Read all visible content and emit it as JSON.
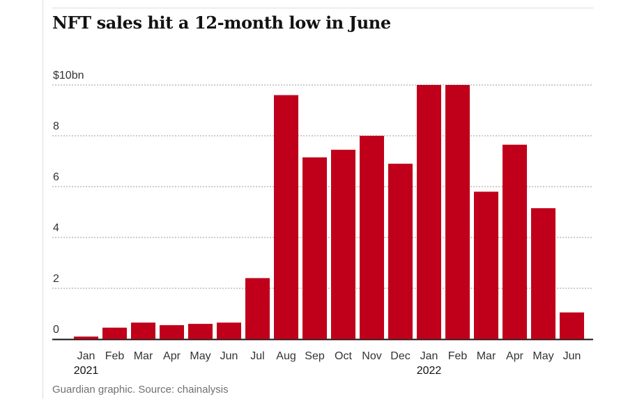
{
  "title": "NFT sales hit a 12-month low in June",
  "source": "Guardian graphic. Source: chainalysis",
  "colors": {
    "bar": "#c0001a",
    "grid": "#999999",
    "text": "#333333",
    "axis": "#121212"
  },
  "chart_data": {
    "type": "bar",
    "categories": [
      "Jan",
      "Feb",
      "Mar",
      "Apr",
      "May",
      "Jun",
      "Jul",
      "Aug",
      "Sep",
      "Oct",
      "Nov",
      "Dec",
      "Jan",
      "Feb",
      "Mar",
      "Apr",
      "May",
      "Jun"
    ],
    "values": [
      0.1,
      0.45,
      0.65,
      0.55,
      0.6,
      0.65,
      2.4,
      9.6,
      7.15,
      7.45,
      8.0,
      6.9,
      10.0,
      10.0,
      5.8,
      7.65,
      5.15,
      1.05
    ],
    "year_labels": [
      {
        "index": 0,
        "label": "2021"
      },
      {
        "index": 12,
        "label": "2022"
      }
    ],
    "y_ticks": [
      "0",
      "2",
      "4",
      "6",
      "8",
      "$10bn"
    ],
    "y_tick_values": [
      0,
      2,
      4,
      6,
      8,
      10
    ],
    "ylim": [
      0,
      10
    ],
    "grid": true,
    "xlabel": "",
    "ylabel": ""
  }
}
